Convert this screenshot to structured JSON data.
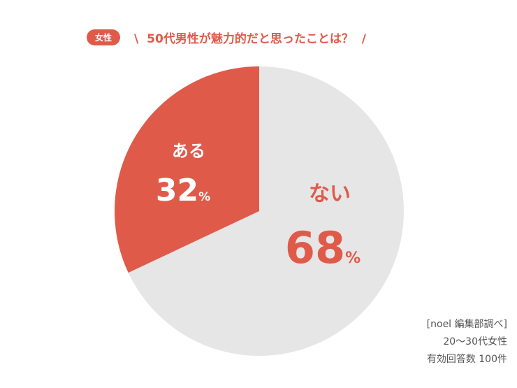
{
  "header": {
    "badge": "女性",
    "question": "50代男性が魅力的だと思ったことは？",
    "slash_left": "\\",
    "slash_right": "/"
  },
  "chart_data": {
    "type": "pie",
    "slices": [
      {
        "label": "ない",
        "value": 68,
        "color": "#e6e6e6",
        "text_color": "#e05a4a"
      },
      {
        "label": "ある",
        "value": 32,
        "color": "#e05a4a",
        "text_color": "#ffffff"
      }
    ],
    "unit": "%"
  },
  "source": {
    "line1": "[noel 編集部調べ]",
    "line2": "20〜30代女性",
    "line3": "有効回答数 100件"
  }
}
